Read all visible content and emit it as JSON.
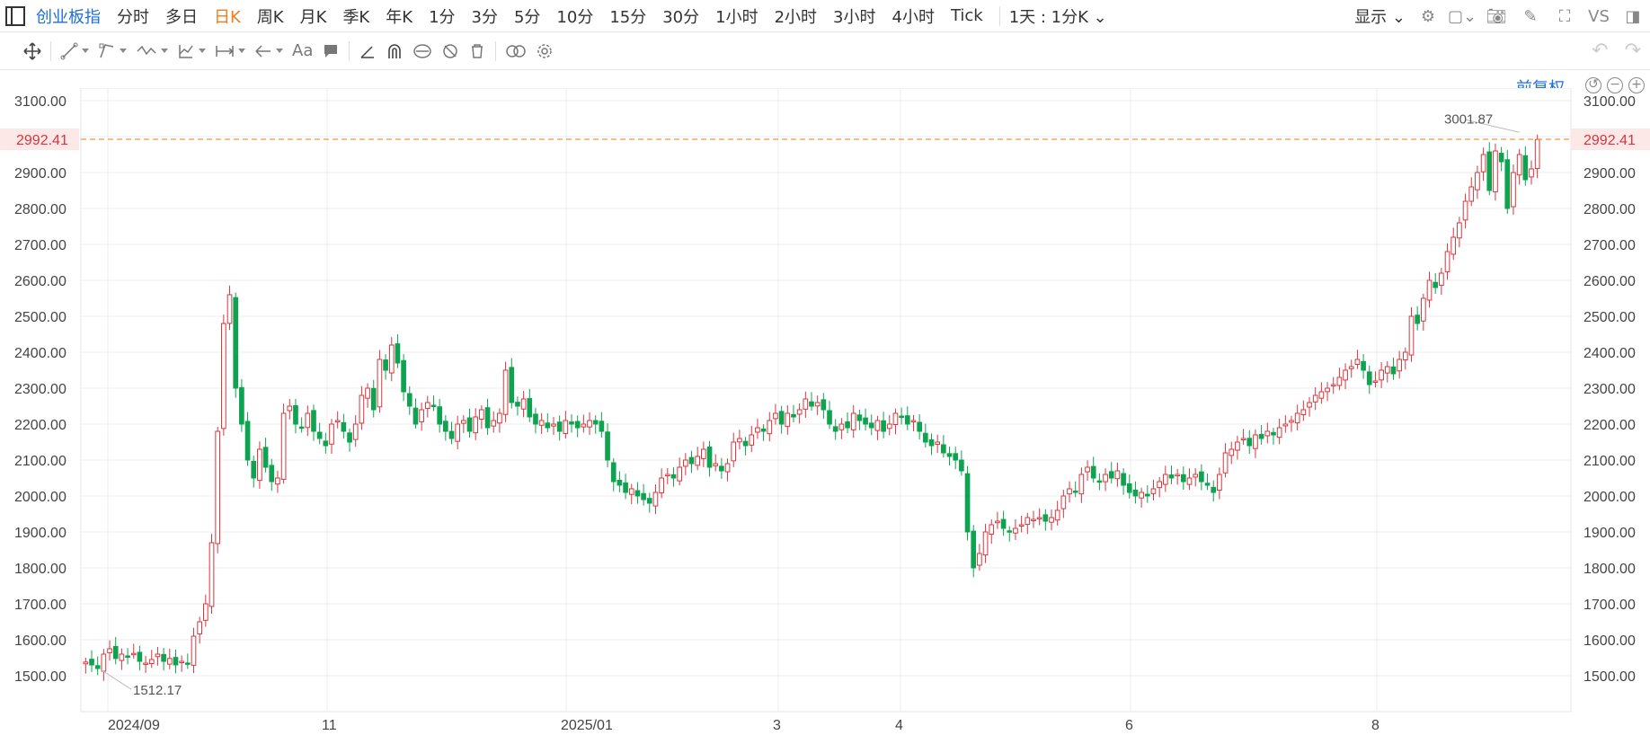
{
  "topbar": {
    "symbol": "创业板指",
    "timeframes": [
      "分时",
      "多日",
      "日K",
      "周K",
      "月K",
      "季K",
      "年K",
      "1分",
      "3分",
      "5分",
      "10分",
      "15分",
      "30分",
      "1小时",
      "2小时",
      "3小时",
      "4小时",
      "Tick"
    ],
    "active": "日K",
    "range_label": "1天 : 1分K",
    "show_label": "显示",
    "vs_label": "VS"
  },
  "toolbar": {
    "text_tool_label": "Aa"
  },
  "chart_header": {
    "adjust_label": "前复权"
  },
  "colors": {
    "up": "#d9363e",
    "down": "#0ea350",
    "price_line": "#f07b18",
    "price_tag": "#d9363e",
    "grid": "#eeeeee"
  },
  "chart_data": {
    "type": "candlestick",
    "ylim": [
      1400,
      3120
    ],
    "y_ticks": [
      "3100.00",
      "3000.00",
      "2900.00",
      "2800.00",
      "2700.00",
      "2600.00",
      "2500.00",
      "2400.00",
      "2300.00",
      "2200.00",
      "2100.00",
      "2000.00",
      "1900.00",
      "1800.00",
      "1700.00",
      "1600.00",
      "1500.00"
    ],
    "x_tick_labels": [
      "2024/09",
      "11",
      "2025/01",
      "3",
      "4",
      "6",
      "8"
    ],
    "current_price": "2992.41",
    "high_label": "3001.87",
    "low_label": "1512.17",
    "series": [
      1538,
      1530,
      1520,
      1560,
      1575,
      1548,
      1560,
      1555,
      1562,
      1540,
      1535,
      1545,
      1560,
      1540,
      1548,
      1530,
      1540,
      1535,
      1610,
      1650,
      1700,
      1870,
      2180,
      2480,
      2560,
      2300,
      2200,
      2100,
      2050,
      2130,
      2080,
      2040,
      2050,
      2230,
      2250,
      2200,
      2190,
      2230,
      2180,
      2160,
      2140,
      2200,
      2210,
      2180,
      2150,
      2200,
      2280,
      2300,
      2240,
      2380,
      2350,
      2420,
      2370,
      2290,
      2250,
      2200,
      2240,
      2260,
      2250,
      2200,
      2180,
      2160,
      2200,
      2210,
      2180,
      2220,
      2240,
      2190,
      2210,
      2230,
      2350,
      2260,
      2250,
      2270,
      2220,
      2200,
      2210,
      2190,
      2200,
      2180,
      2210,
      2200,
      2190,
      2200,
      2210,
      2200,
      2180,
      2100,
      2040,
      2030,
      2010,
      2020,
      2000,
      1990,
      1980,
      2010,
      2050,
      2060,
      2050,
      2080,
      2100,
      2090,
      2110,
      2130,
      2080,
      2090,
      2070,
      2090,
      2150,
      2160,
      2140,
      2170,
      2190,
      2180,
      2210,
      2230,
      2200,
      2230,
      2220,
      2240,
      2270,
      2250,
      2260,
      2240,
      2200,
      2180,
      2200,
      2190,
      2230,
      2210,
      2200,
      2190,
      2210,
      2180,
      2200,
      2230,
      2220,
      2200,
      2210,
      2180,
      2150,
      2140,
      2150,
      2120,
      2110,
      2100,
      2070,
      1900,
      1800,
      1840,
      1900,
      1920,
      1930,
      1910,
      1900,
      1910,
      1920,
      1940,
      1935,
      1940,
      1930,
      1940,
      1960,
      2000,
      2020,
      2010,
      2060,
      2080,
      2050,
      2040,
      2060,
      2050,
      2070,
      2030,
      2010,
      2000,
      2010,
      2000,
      2020,
      2040,
      2060,
      2050,
      2060,
      2040,
      2050,
      2060,
      2040,
      2030,
      2010,
      2060,
      2120,
      2130,
      2150,
      2160,
      2140,
      2170,
      2160,
      2180,
      2170,
      2190,
      2200,
      2210,
      2230,
      2240,
      2260,
      2280,
      2290,
      2300,
      2310,
      2330,
      2350,
      2360,
      2380,
      2350,
      2310,
      2320,
      2350,
      2360,
      2340,
      2380,
      2400,
      2500,
      2480,
      2550,
      2600,
      2580,
      2620,
      2680,
      2720,
      2760,
      2820,
      2860,
      2900,
      2950,
      2850,
      2960,
      2930,
      2800,
      2900,
      2950,
      2880,
      2910,
      2992
    ]
  }
}
